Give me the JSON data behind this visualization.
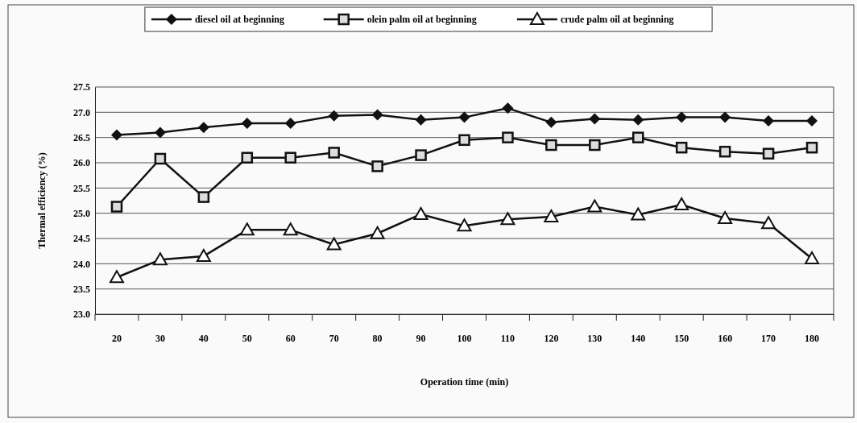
{
  "chart_data": {
    "type": "line",
    "xlabel": "Operation time (min)",
    "ylabel": "Thermal efficiency (%)",
    "categories": [
      "20",
      "30",
      "40",
      "50",
      "60",
      "70",
      "80",
      "90",
      "100",
      "110",
      "120",
      "130",
      "140",
      "150",
      "160",
      "170",
      "180"
    ],
    "series": [
      {
        "name": "diesel oil at beginning",
        "color": "#111111",
        "marker": "diamond",
        "values": [
          26.55,
          26.6,
          26.7,
          26.78,
          26.78,
          26.93,
          26.95,
          26.85,
          26.9,
          27.08,
          26.8,
          26.87,
          26.85,
          26.9,
          26.9,
          26.83,
          26.83
        ]
      },
      {
        "name": "olein palm oil at beginning",
        "color": "#111111",
        "marker": "square",
        "values": [
          25.13,
          26.08,
          25.32,
          26.1,
          26.1,
          26.2,
          25.93,
          26.15,
          26.45,
          26.5,
          26.35,
          26.35,
          26.5,
          26.3,
          26.22,
          26.18,
          26.3
        ]
      },
      {
        "name": "crude palm oil at beginning",
        "color": "#111111",
        "marker": "triangle",
        "values": [
          23.73,
          24.08,
          24.15,
          24.67,
          24.67,
          24.38,
          24.6,
          24.98,
          24.75,
          24.88,
          24.93,
          25.13,
          24.97,
          25.17,
          24.9,
          24.8,
          24.1
        ]
      }
    ],
    "ylim": [
      23.0,
      27.5
    ],
    "yticks": [
      {
        "value": 23,
        "label": "23.0"
      },
      {
        "value": 23.5,
        "label": "23.5"
      },
      {
        "value": 24,
        "label": "24.0"
      },
      {
        "value": 24.5,
        "label": "24.5"
      },
      {
        "value": 25,
        "label": "25.0"
      },
      {
        "value": 25.5,
        "label": "25.5"
      },
      {
        "value": 26,
        "label": "26.0"
      },
      {
        "value": 26.5,
        "label": "26.5"
      },
      {
        "value": 27,
        "label": "27.0"
      },
      {
        "value": 27.5,
        "label": "27.5"
      }
    ],
    "grid": "y",
    "legend": "top",
    "line_style": "solid"
  }
}
